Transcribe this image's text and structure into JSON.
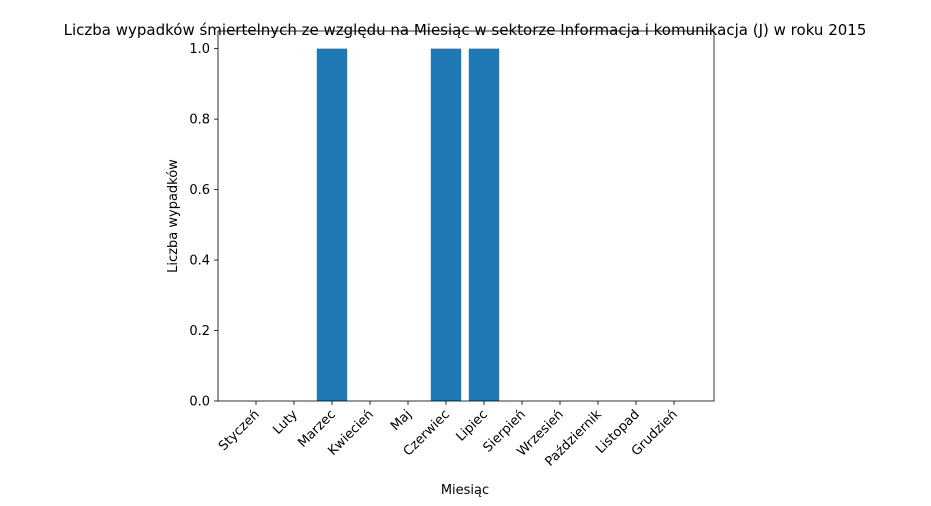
{
  "chart_data": {
    "type": "bar",
    "title": "Liczba wypadków śmiertelnych ze względu na Miesiąc w sektorze Informacja i komunikacja  (J)   w roku 2015",
    "xlabel": "Miesiąc",
    "ylabel": "Liczba wypadków",
    "categories": [
      "Styczeń",
      "Luty",
      "Marzec",
      "Kwiecień",
      "Maj",
      "Czerwiec",
      "Lipiec",
      "Sierpień",
      "Wrzesień",
      "Październik",
      "Listopad",
      "Grudzień"
    ],
    "values": [
      0,
      0,
      1,
      0,
      0,
      1,
      1,
      0,
      0,
      0,
      0,
      0
    ],
    "ylim": [
      0,
      1.05
    ],
    "yticks": [
      "0.0",
      "0.2",
      "0.4",
      "0.6",
      "0.8",
      "1.0"
    ],
    "grid": false,
    "bar_color": "#1f77b4"
  }
}
